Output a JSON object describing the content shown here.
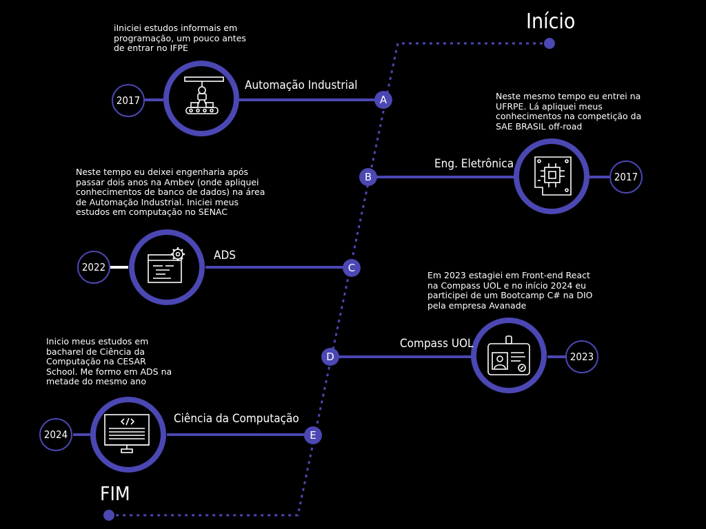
{
  "start_label": "Início",
  "end_label": "FIM",
  "milestones": [
    {
      "letter": "A",
      "title": "Automação Industrial",
      "year": "2017",
      "icon": "robot-conveyor-icon",
      "text": "iIniciei estudos informais em programação, um pouco antes de entrar no  IFPE"
    },
    {
      "letter": "B",
      "title": "Eng. Eletrônica",
      "year": "2017",
      "icon": "circuit-board-icon",
      "text": "Neste mesmo tempo eu entrei na UFRPE. Lá apliquei meus conhecimentos na competição da SAE BRASIL off-road"
    },
    {
      "letter": "C",
      "title": "ADS",
      "year": "2022",
      "icon": "code-window-gear-icon",
      "text": "Neste tempo eu deixei engenharia após passar dois anos na Ambev (onde apliquei conhecimentos de banco de dados) na área de Automação Industrial. Iniciei meus estudos em computação no SENAC"
    },
    {
      "letter": "D",
      "title": "Compass UOL",
      "year": "2023",
      "icon": "id-badge-icon",
      "text": "Em 2023 estagiei em Front-end React na Compass UOL e no início 2024 eu participei de um Bootcamp C# na DIO pela empresa Avanade"
    },
    {
      "letter": "E",
      "title": "Ciência da Computação",
      "year": "2024",
      "icon": "monitor-code-icon",
      "text": "Inicio meus estudos em bacharel de Ciência da Computação na CESAR School. Me formo em ADS na metade do mesmo ano"
    }
  ],
  "colors": {
    "accent": "#4b47b3",
    "background": "#000000",
    "text": "#ffffff"
  }
}
